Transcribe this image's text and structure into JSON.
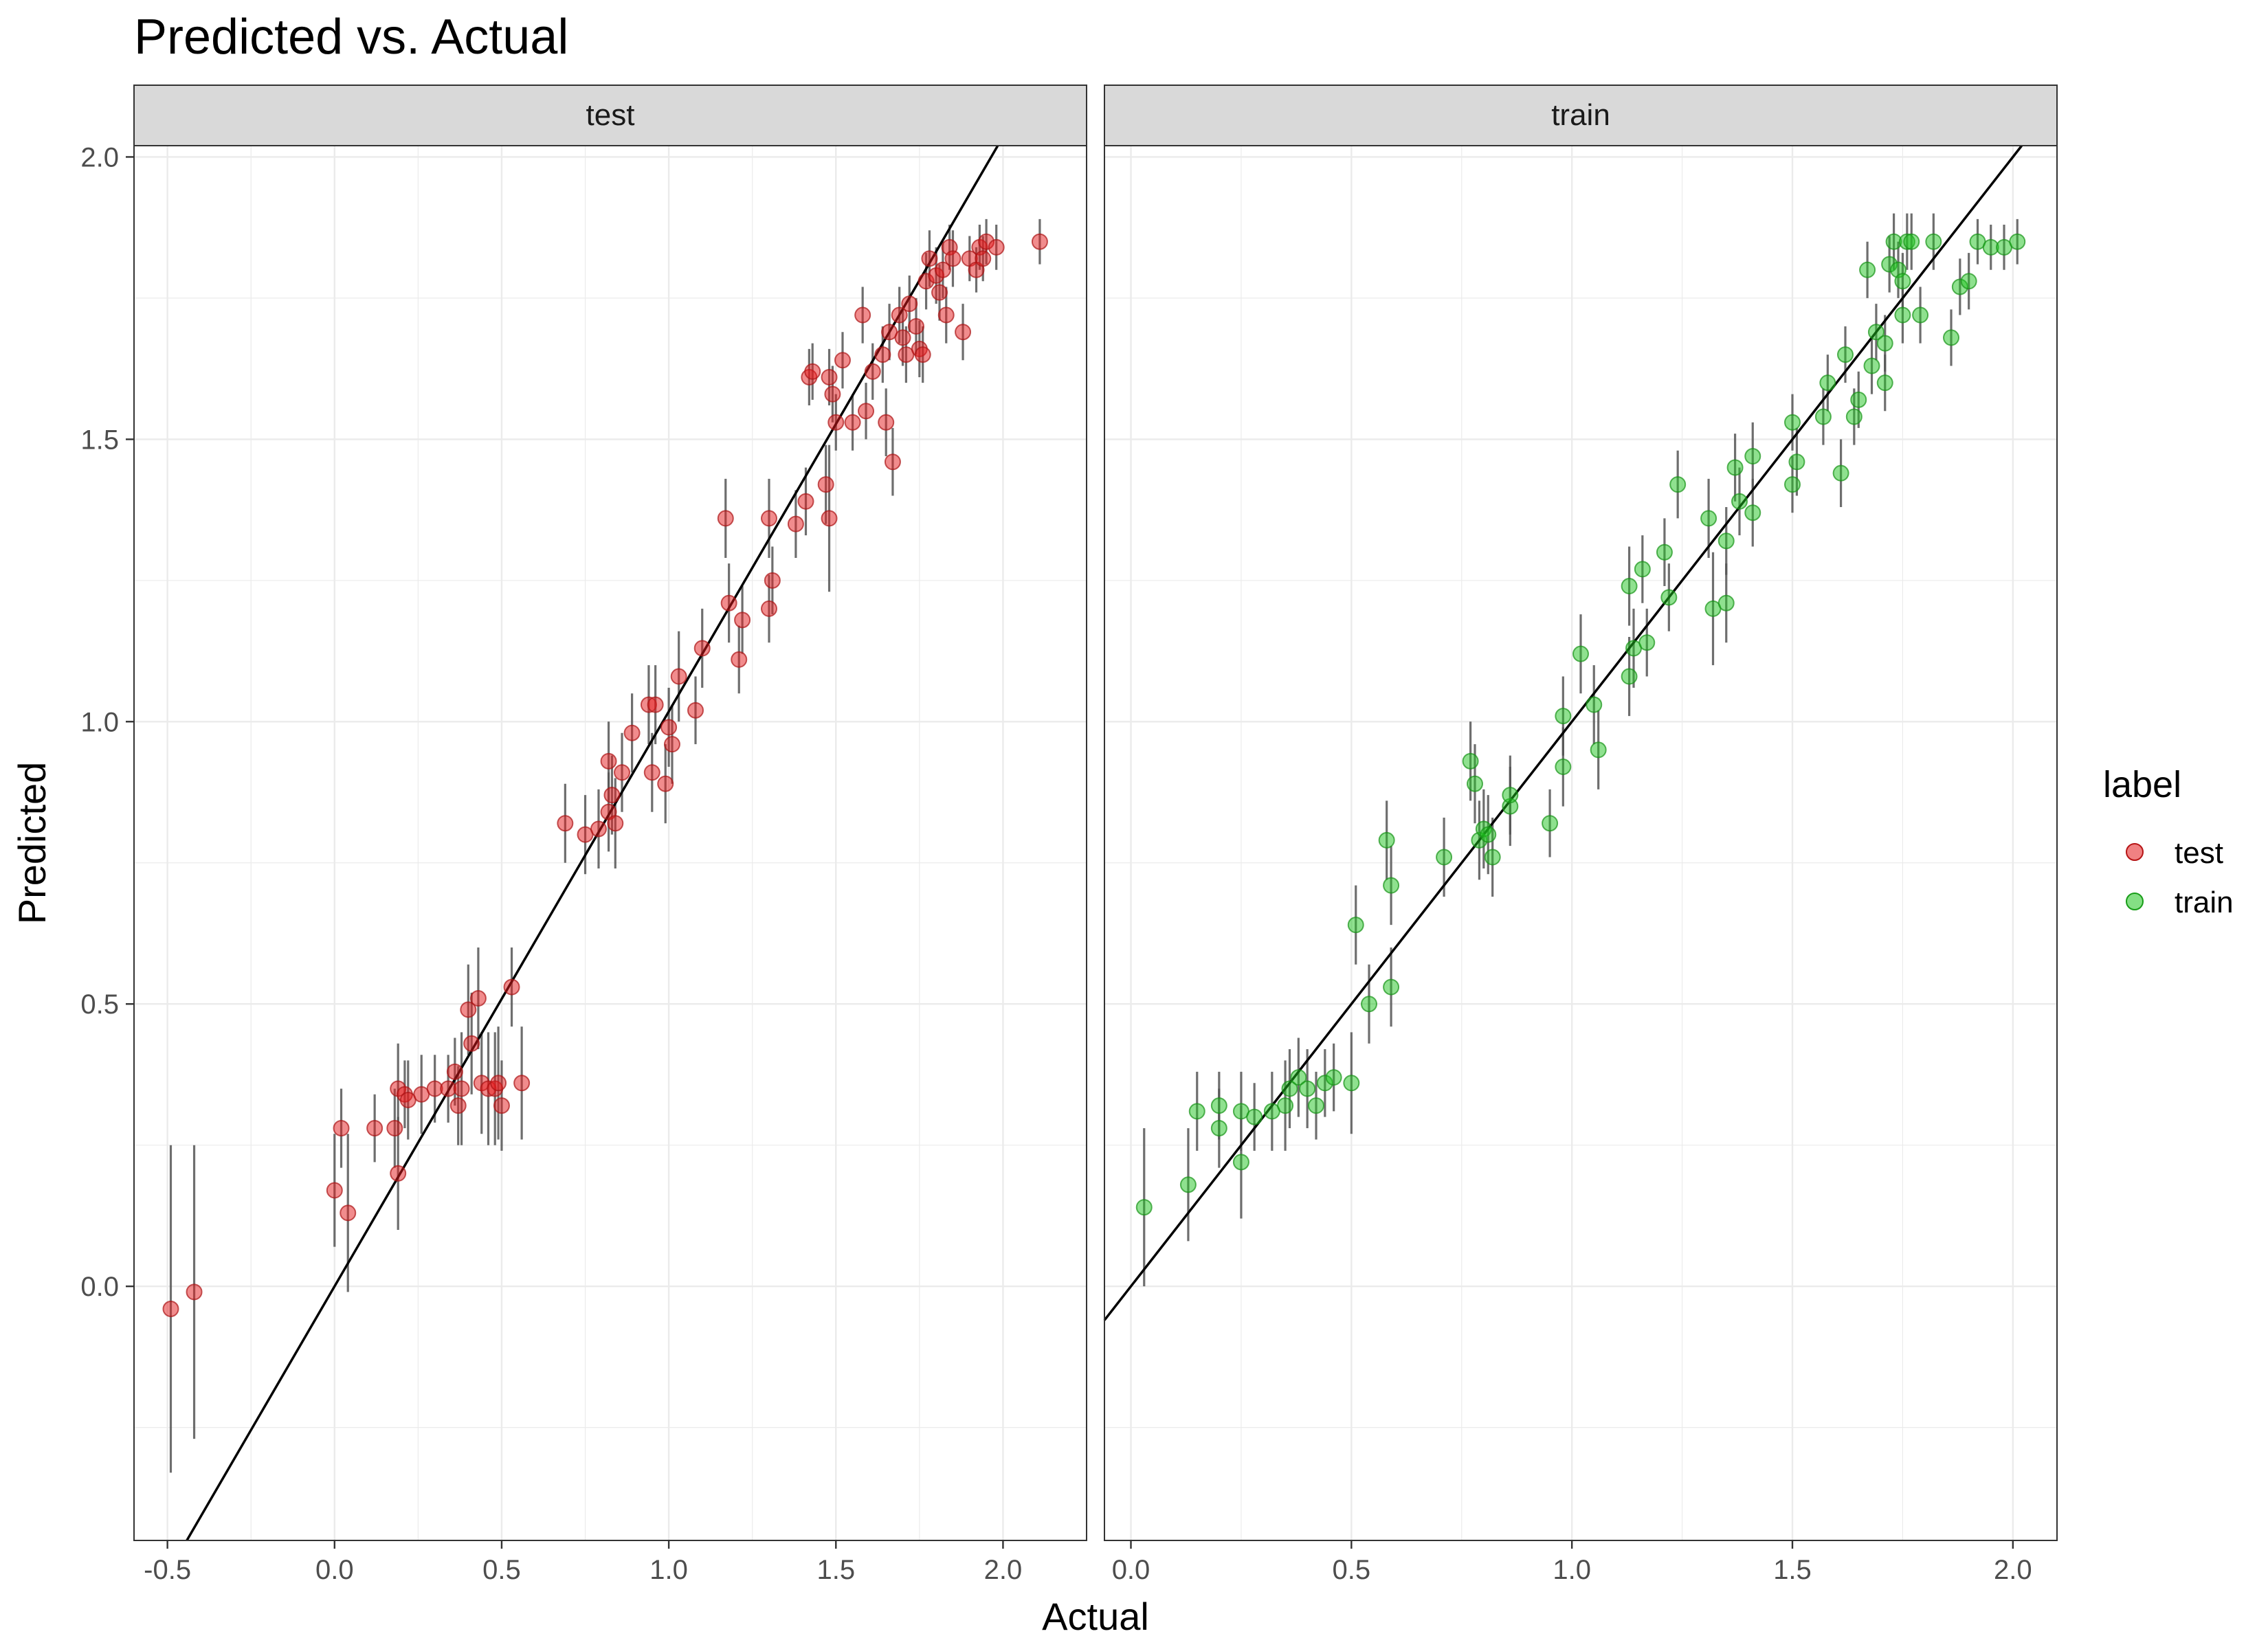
{
  "chart_data": {
    "type": "scatter",
    "title": "Predicted vs. Actual",
    "xlabel": "Actual",
    "ylabel": "Predicted",
    "legend": {
      "title": "label",
      "placement": "right",
      "entries": [
        {
          "name": "test",
          "color": "#e41a1c"
        },
        {
          "name": "train",
          "color": "#1fc41f"
        }
      ]
    },
    "grid": true,
    "ylim": [
      -0.45,
      2.02
    ],
    "yticks": [
      0.0,
      0.5,
      1.0,
      1.5,
      2.0
    ],
    "ytick_labels": [
      "0.0",
      "0.5",
      "1.0",
      "1.5",
      "2.0"
    ],
    "panels": [
      {
        "strip": "test",
        "color": "#e41a1c",
        "xlim": [
          -0.6,
          2.25
        ],
        "xticks": [
          -0.5,
          0.0,
          0.5,
          1.0,
          1.5,
          2.0
        ],
        "xtick_labels": [
          "-0.5",
          "0.0",
          "0.5",
          "1.0",
          "1.5",
          "2.0"
        ],
        "fit_line": {
          "slope": 1.018,
          "intercept": 0.0
        },
        "points": [
          [
            -0.49,
            -0.04,
            0.29
          ],
          [
            -0.42,
            -0.01,
            0.26
          ],
          [
            0.0,
            0.17,
            0.1
          ],
          [
            0.02,
            0.28,
            0.07
          ],
          [
            0.04,
            0.13,
            0.14
          ],
          [
            0.12,
            0.28,
            0.06
          ],
          [
            0.18,
            0.28,
            0.07
          ],
          [
            0.19,
            0.35,
            0.08
          ],
          [
            0.19,
            0.2,
            0.1
          ],
          [
            0.21,
            0.34,
            0.06
          ],
          [
            0.22,
            0.33,
            0.07
          ],
          [
            0.26,
            0.34,
            0.07
          ],
          [
            0.3,
            0.35,
            0.06
          ],
          [
            0.34,
            0.35,
            0.06
          ],
          [
            0.36,
            0.38,
            0.06
          ],
          [
            0.37,
            0.32,
            0.07
          ],
          [
            0.38,
            0.35,
            0.1
          ],
          [
            0.4,
            0.49,
            0.08
          ],
          [
            0.41,
            0.43,
            0.09
          ],
          [
            0.43,
            0.51,
            0.09
          ],
          [
            0.44,
            0.36,
            0.09
          ],
          [
            0.46,
            0.35,
            0.1
          ],
          [
            0.48,
            0.35,
            0.1
          ],
          [
            0.49,
            0.36,
            0.1
          ],
          [
            0.5,
            0.32,
            0.08
          ],
          [
            0.53,
            0.53,
            0.07
          ],
          [
            0.56,
            0.36,
            0.1
          ],
          [
            0.69,
            0.82,
            0.07
          ],
          [
            0.75,
            0.8,
            0.07
          ],
          [
            0.79,
            0.81,
            0.07
          ],
          [
            0.82,
            0.84,
            0.07
          ],
          [
            0.82,
            0.93,
            0.07
          ],
          [
            0.83,
            0.87,
            0.07
          ],
          [
            0.84,
            0.82,
            0.08
          ],
          [
            0.86,
            0.91,
            0.07
          ],
          [
            0.89,
            0.98,
            0.07
          ],
          [
            0.94,
            1.03,
            0.07
          ],
          [
            0.95,
            0.91,
            0.07
          ],
          [
            0.96,
            1.03,
            0.07
          ],
          [
            0.99,
            0.89,
            0.07
          ],
          [
            1.0,
            0.99,
            0.07
          ],
          [
            1.01,
            0.96,
            0.07
          ],
          [
            1.03,
            1.08,
            0.08
          ],
          [
            1.08,
            1.02,
            0.06
          ],
          [
            1.1,
            1.13,
            0.07
          ],
          [
            1.17,
            1.36,
            0.07
          ],
          [
            1.18,
            1.21,
            0.07
          ],
          [
            1.21,
            1.11,
            0.06
          ],
          [
            1.22,
            1.18,
            0.06
          ],
          [
            1.3,
            1.36,
            0.07
          ],
          [
            1.3,
            1.2,
            0.06
          ],
          [
            1.31,
            1.25,
            0.06
          ],
          [
            1.38,
            1.35,
            0.06
          ],
          [
            1.41,
            1.39,
            0.06
          ],
          [
            1.42,
            1.61,
            0.05
          ],
          [
            1.43,
            1.62,
            0.05
          ],
          [
            1.47,
            1.42,
            0.07
          ],
          [
            1.48,
            1.36,
            0.13
          ],
          [
            1.48,
            1.61,
            0.05
          ],
          [
            1.49,
            1.58,
            0.05
          ],
          [
            1.5,
            1.53,
            0.05
          ],
          [
            1.52,
            1.64,
            0.05
          ],
          [
            1.55,
            1.53,
            0.05
          ],
          [
            1.58,
            1.72,
            0.05
          ],
          [
            1.59,
            1.55,
            0.05
          ],
          [
            1.61,
            1.62,
            0.05
          ],
          [
            1.64,
            1.65,
            0.05
          ],
          [
            1.65,
            1.53,
            0.06
          ],
          [
            1.66,
            1.69,
            0.05
          ],
          [
            1.67,
            1.46,
            0.06
          ],
          [
            1.69,
            1.72,
            0.05
          ],
          [
            1.7,
            1.68,
            0.05
          ],
          [
            1.71,
            1.65,
            0.05
          ],
          [
            1.72,
            1.74,
            0.05
          ],
          [
            1.74,
            1.7,
            0.05
          ],
          [
            1.75,
            1.66,
            0.05
          ],
          [
            1.76,
            1.65,
            0.05
          ],
          [
            1.77,
            1.78,
            0.05
          ],
          [
            1.78,
            1.82,
            0.05
          ],
          [
            1.8,
            1.79,
            0.05
          ],
          [
            1.81,
            1.76,
            0.05
          ],
          [
            1.82,
            1.8,
            0.05
          ],
          [
            1.83,
            1.72,
            0.05
          ],
          [
            1.84,
            1.84,
            0.04
          ],
          [
            1.85,
            1.82,
            0.05
          ],
          [
            1.88,
            1.69,
            0.05
          ],
          [
            1.9,
            1.82,
            0.04
          ],
          [
            1.92,
            1.8,
            0.04
          ],
          [
            1.93,
            1.84,
            0.04
          ],
          [
            1.94,
            1.82,
            0.04
          ],
          [
            1.95,
            1.85,
            0.04
          ],
          [
            1.98,
            1.84,
            0.04
          ],
          [
            2.11,
            1.85,
            0.04
          ]
        ]
      },
      {
        "strip": "train",
        "color": "#1fc41f",
        "xlim": [
          -0.06,
          2.1
        ],
        "xticks": [
          0.0,
          0.5,
          1.0,
          1.5,
          2.0
        ],
        "xtick_labels": [
          "0.0",
          "0.5",
          "1.0",
          "1.5",
          "2.0"
        ],
        "fit_line": {
          "slope": 1.0,
          "intercept": 0.0
        },
        "points": [
          [
            0.03,
            0.14,
            0.14
          ],
          [
            0.13,
            0.18,
            0.1
          ],
          [
            0.15,
            0.31,
            0.07
          ],
          [
            0.2,
            0.28,
            0.07
          ],
          [
            0.2,
            0.32,
            0.06
          ],
          [
            0.25,
            0.22,
            0.1
          ],
          [
            0.25,
            0.31,
            0.07
          ],
          [
            0.28,
            0.3,
            0.06
          ],
          [
            0.32,
            0.31,
            0.07
          ],
          [
            0.35,
            0.32,
            0.08
          ],
          [
            0.36,
            0.35,
            0.07
          ],
          [
            0.38,
            0.37,
            0.07
          ],
          [
            0.4,
            0.35,
            0.07
          ],
          [
            0.42,
            0.32,
            0.06
          ],
          [
            0.44,
            0.36,
            0.06
          ],
          [
            0.46,
            0.37,
            0.06
          ],
          [
            0.5,
            0.36,
            0.09
          ],
          [
            0.51,
            0.64,
            0.07
          ],
          [
            0.54,
            0.5,
            0.07
          ],
          [
            0.58,
            0.79,
            0.07
          ],
          [
            0.59,
            0.71,
            0.07
          ],
          [
            0.59,
            0.53,
            0.07
          ],
          [
            0.71,
            0.76,
            0.07
          ],
          [
            0.77,
            0.93,
            0.07
          ],
          [
            0.78,
            0.89,
            0.07
          ],
          [
            0.79,
            0.79,
            0.07
          ],
          [
            0.8,
            0.81,
            0.07
          ],
          [
            0.81,
            0.8,
            0.07
          ],
          [
            0.82,
            0.76,
            0.07
          ],
          [
            0.86,
            0.85,
            0.07
          ],
          [
            0.86,
            0.87,
            0.07
          ],
          [
            0.95,
            0.82,
            0.06
          ],
          [
            0.98,
            1.01,
            0.07
          ],
          [
            0.98,
            0.92,
            0.07
          ],
          [
            1.02,
            1.12,
            0.07
          ],
          [
            1.05,
            1.03,
            0.07
          ],
          [
            1.06,
            0.95,
            0.07
          ],
          [
            1.13,
            1.24,
            0.07
          ],
          [
            1.13,
            1.08,
            0.07
          ],
          [
            1.14,
            1.13,
            0.07
          ],
          [
            1.16,
            1.27,
            0.06
          ],
          [
            1.17,
            1.14,
            0.06
          ],
          [
            1.21,
            1.3,
            0.06
          ],
          [
            1.22,
            1.22,
            0.06
          ],
          [
            1.24,
            1.42,
            0.06
          ],
          [
            1.31,
            1.36,
            0.07
          ],
          [
            1.32,
            1.2,
            0.1
          ],
          [
            1.35,
            1.32,
            0.06
          ],
          [
            1.35,
            1.21,
            0.07
          ],
          [
            1.37,
            1.45,
            0.06
          ],
          [
            1.38,
            1.39,
            0.06
          ],
          [
            1.41,
            1.37,
            0.06
          ],
          [
            1.41,
            1.47,
            0.06
          ],
          [
            1.5,
            1.42,
            0.05
          ],
          [
            1.5,
            1.53,
            0.05
          ],
          [
            1.51,
            1.46,
            0.06
          ],
          [
            1.57,
            1.54,
            0.05
          ],
          [
            1.58,
            1.6,
            0.05
          ],
          [
            1.61,
            1.44,
            0.06
          ],
          [
            1.62,
            1.65,
            0.05
          ],
          [
            1.64,
            1.54,
            0.05
          ],
          [
            1.65,
            1.57,
            0.05
          ],
          [
            1.67,
            1.8,
            0.05
          ],
          [
            1.68,
            1.63,
            0.05
          ],
          [
            1.69,
            1.69,
            0.05
          ],
          [
            1.71,
            1.67,
            0.05
          ],
          [
            1.71,
            1.6,
            0.05
          ],
          [
            1.72,
            1.81,
            0.05
          ],
          [
            1.73,
            1.85,
            0.05
          ],
          [
            1.74,
            1.8,
            0.05
          ],
          [
            1.75,
            1.72,
            0.05
          ],
          [
            1.75,
            1.78,
            0.05
          ],
          [
            1.76,
            1.85,
            0.05
          ],
          [
            1.77,
            1.85,
            0.05
          ],
          [
            1.79,
            1.72,
            0.05
          ],
          [
            1.82,
            1.85,
            0.05
          ],
          [
            1.86,
            1.68,
            0.05
          ],
          [
            1.88,
            1.77,
            0.05
          ],
          [
            1.9,
            1.78,
            0.05
          ],
          [
            1.92,
            1.85,
            0.04
          ],
          [
            1.95,
            1.84,
            0.04
          ],
          [
            1.98,
            1.84,
            0.04
          ],
          [
            2.01,
            1.85,
            0.04
          ]
        ]
      }
    ]
  }
}
